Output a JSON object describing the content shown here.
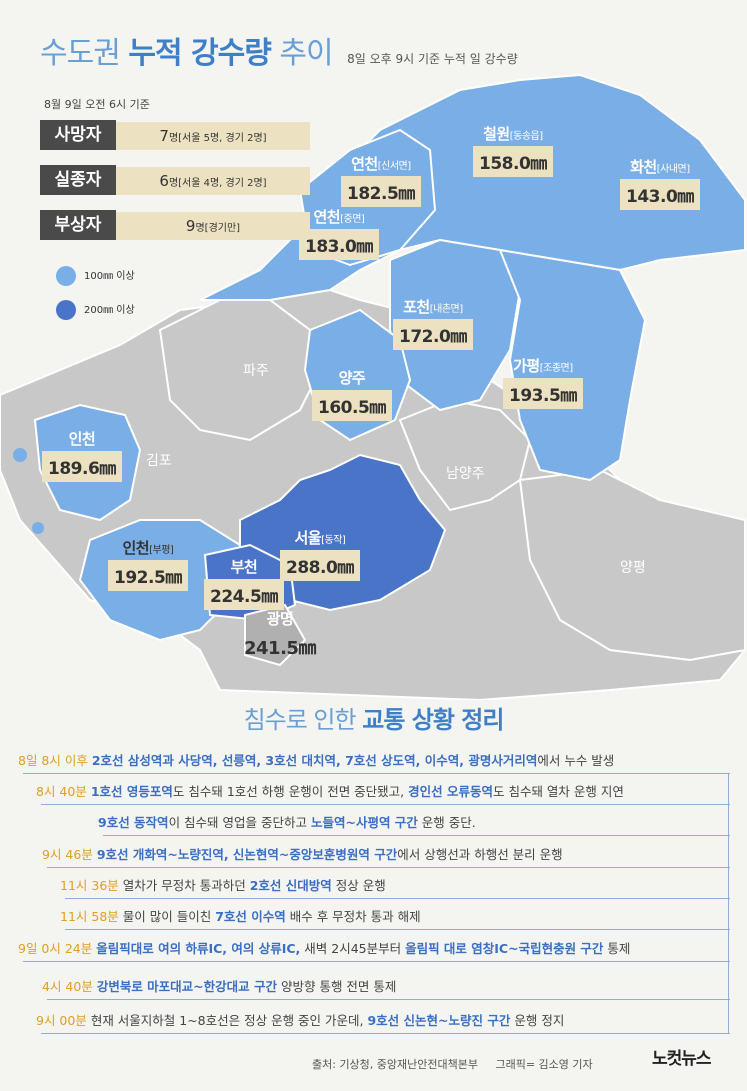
{
  "title": {
    "part1": "수도권",
    "part2": "누적 강수량",
    "part3": "추이",
    "subtitle": "8일 오후 9시 기준 누적 일 강수량"
  },
  "casualties": {
    "basis": "8월 9일 오전 6시 기준",
    "rows": [
      {
        "label": "사망자",
        "num": "7",
        "detail": "명[서울 5명, 경기 2명]"
      },
      {
        "label": "실종자",
        "num": "6",
        "detail": "명[서울 4명, 경기 2명]"
      },
      {
        "label": "부상자",
        "num": "9",
        "detail": "명[경기만]"
      }
    ]
  },
  "legend": [
    {
      "label": "100㎜ 이상",
      "color": "#7aaee6"
    },
    {
      "label": "200㎜ 이상",
      "color": "#4a74c8"
    }
  ],
  "regions": [
    {
      "name": "철원",
      "sub": "[동송읍]",
      "value": "158.0㎜"
    },
    {
      "name": "연천",
      "sub": "[신서면]",
      "value": "182.5㎜"
    },
    {
      "name": "화천",
      "sub": "[사내면]",
      "value": "143.0㎜"
    },
    {
      "name": "연천",
      "sub": "[중면]",
      "value": "183.0㎜"
    },
    {
      "name": "포천",
      "sub": "[내촌면]",
      "value": "172.0㎜"
    },
    {
      "name": "양주",
      "sub": "",
      "value": "160.5㎜"
    },
    {
      "name": "가평",
      "sub": "[조종면]",
      "value": "193.5㎜"
    },
    {
      "name": "인천",
      "sub": "",
      "value": "189.6㎜"
    },
    {
      "name": "인천",
      "sub": "[부평]",
      "value": "192.5㎜"
    },
    {
      "name": "서울",
      "sub": "[동작]",
      "value": "288.0㎜"
    },
    {
      "name": "부천",
      "sub": "",
      "value": "224.5㎜"
    },
    {
      "name": "광명",
      "sub": "",
      "value": "241.5㎜"
    }
  ],
  "gray_regions": [
    "파주",
    "김포",
    "남양주",
    "양평"
  ],
  "section_title": {
    "part1": "침수로 인한",
    "part2": "교통 상황 정리"
  },
  "timeline": [
    {
      "time": "8일 8시 이후",
      "rest": [
        {
          "b": "2호선 삼성역과 사당역, 선릉역, 3호선 대치역, 7호선 상도역, 이수역, 광명사거리역"
        },
        {
          "t": "에서 누수 발생"
        }
      ]
    },
    {
      "time": "8시 40분",
      "rest": [
        {
          "b": "1호선 영등포역"
        },
        {
          "t": "도 침수돼 1호선 하행 운행이 전면 중단됐고, "
        },
        {
          "b": "경인선 오류동역"
        },
        {
          "t": "도 침수돼 열차 운행 지연"
        }
      ]
    },
    {
      "time": "",
      "rest": [
        {
          "b": "9호선 동작역"
        },
        {
          "t": "이 침수돼 영업을 중단하고 "
        },
        {
          "b": "노들역~사평역 구간"
        },
        {
          "t": " 운행 중단."
        }
      ]
    },
    {
      "time": "9시 46분",
      "rest": [
        {
          "b": "9호선 개화역~노량진역, 신논현역~중앙보훈병원역 구간"
        },
        {
          "t": "에서 상행선과 하행선 분리 운행"
        }
      ]
    },
    {
      "time": "11시 36분",
      "rest": [
        {
          "t": "열차가 무정차 통과하던 "
        },
        {
          "b": "2호선 신대방역"
        },
        {
          "t": " 정상 운행"
        }
      ]
    },
    {
      "time": "11시 58분",
      "rest": [
        {
          "t": "물이 많이 들이친 "
        },
        {
          "b": "7호선 이수역"
        },
        {
          "t": " 배수 후 무정차 통과 해제"
        }
      ]
    },
    {
      "time": "9일 0시 24분",
      "rest": [
        {
          "b": "올림픽대로 여의 하류IC, 여의 상류IC,"
        },
        {
          "t": " 새벽 2시45분부터 "
        },
        {
          "b": "올림픽 대로 염창IC~국립현충원 구간"
        },
        {
          "t": " 통제"
        }
      ]
    },
    {
      "time": "4시 40분",
      "rest": [
        {
          "b": "강변북로 마포대교~한강대교 구간"
        },
        {
          "t": " 양방향 통행 전면 통제"
        }
      ]
    },
    {
      "time": "9시 00분",
      "rest": [
        {
          "t": "현재 서울지하철 1~8호선은 정상 운행 중인 가운데, "
        },
        {
          "b": "9호선 신논현~노량진 구간"
        },
        {
          "t": " 운행 정지"
        }
      ]
    }
  ],
  "footer": {
    "source": "출처: 기상청, 중앙재난안전대책본부",
    "credit": "그래픽= 김소영 기자",
    "logo": "노컷뉴스"
  }
}
